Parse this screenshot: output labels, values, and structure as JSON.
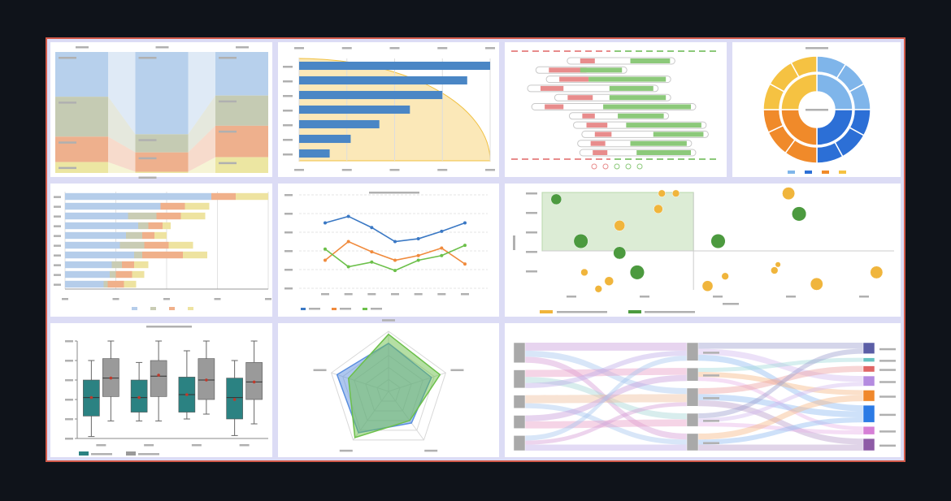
{
  "chart_data": [
    {
      "type": "stacked-column",
      "ylim": [
        0,
        100
      ],
      "series": [
        {
          "color": "#b7d0ec",
          "values": [
            37,
            68,
            36
          ]
        },
        {
          "color": "#c5cbb3",
          "values": [
            33,
            15,
            25
          ]
        },
        {
          "color": "#eeb08d",
          "values": [
            21,
            16,
            26
          ]
        },
        {
          "color": "#ece6a2",
          "values": [
            9,
            1,
            13
          ]
        }
      ]
    },
    {
      "type": "bar",
      "values": [
        100,
        88,
        75,
        58,
        42,
        27,
        16
      ],
      "color": "#4a86c5",
      "area_color": "#fbe8b8",
      "xlim": [
        0,
        100
      ],
      "xticks": [
        0,
        25,
        50,
        75,
        100
      ],
      "grid": true
    },
    {
      "type": "gantt",
      "xlim": [
        0,
        100
      ],
      "series": [
        {
          "color": "#e88c8c",
          "values": [
            [
              33,
              40
            ],
            [
              18,
              36
            ],
            [
              23,
              37
            ],
            [
              14,
              25
            ],
            [
              27,
              39
            ],
            [
              16,
              25
            ],
            [
              34,
              40
            ],
            [
              36,
              46
            ],
            [
              40,
              48
            ],
            [
              38,
              45
            ],
            [
              39,
              46
            ]
          ]
        },
        {
          "color": "#8cc97a",
          "values": [
            [
              57,
              76
            ],
            [
              33,
              53
            ],
            [
              37,
              74
            ],
            [
              47,
              68
            ],
            [
              47,
              74
            ],
            [
              44,
              86
            ],
            [
              51,
              73
            ],
            [
              55,
              91
            ],
            [
              68,
              92
            ],
            [
              57,
              84
            ],
            [
              60,
              86
            ]
          ]
        }
      ]
    },
    {
      "type": "sunburst",
      "values": [
        25,
        25,
        25,
        25
      ],
      "colors": [
        "#7fb5ea",
        "#2c6fd6",
        "#f08a2a",
        "#f5c242"
      ],
      "children": [
        [
          9,
          8,
          8
        ],
        [
          8,
          9,
          8
        ],
        [
          10,
          8,
          7
        ],
        [
          8,
          9,
          8
        ]
      ]
    },
    {
      "type": "stacked-bar",
      "xlim": [
        0,
        100
      ],
      "xticks": [
        0,
        25,
        50,
        75,
        100
      ],
      "grid": true,
      "series": [
        {
          "color": "#b5cdea",
          "values": [
            72,
            47,
            31,
            36,
            30,
            27,
            34,
            23,
            22,
            19
          ]
        },
        {
          "color": "#c9ccb4",
          "values": [
            0,
            0,
            14,
            5,
            8,
            12,
            4,
            5,
            3,
            2
          ]
        },
        {
          "color": "#f0b08a",
          "values": [
            12,
            12,
            12,
            7,
            6,
            12,
            20,
            6,
            8,
            8
          ]
        },
        {
          "color": "#eee3a0",
          "values": [
            16,
            12,
            12,
            4,
            6,
            12,
            12,
            7,
            6,
            6
          ]
        }
      ]
    },
    {
      "type": "line",
      "ylim": [
        0,
        100
      ],
      "yticks": [
        0,
        20,
        40,
        60,
        80,
        100
      ],
      "grid": true,
      "series": [
        {
          "color": "#3a78c4",
          "values": [
            70,
            77,
            65,
            50,
            53,
            61,
            70
          ]
        },
        {
          "color": "#f08a3c",
          "values": [
            30,
            50,
            39,
            30,
            35,
            43,
            26
          ]
        },
        {
          "color": "#6cc04a",
          "values": [
            42,
            23,
            28,
            19,
            30,
            35,
            46
          ]
        }
      ]
    },
    {
      "type": "bubble",
      "xlim": [
        0,
        100
      ],
      "ylim": [
        0,
        100
      ],
      "quadrant_split": [
        43,
        40
      ],
      "series": [
        {
          "color": "#4c9a3f",
          "x": [
            4,
            11,
            22,
            27,
            50,
            73
          ],
          "y": [
            93,
            50,
            38,
            18,
            50,
            78
          ],
          "size": [
            6,
            8,
            7,
            8,
            8,
            8
          ]
        },
        {
          "color": "#f0b53c",
          "x": [
            22,
            33,
            34,
            38,
            12,
            16,
            19,
            52,
            47,
            66,
            67,
            70,
            78,
            95
          ],
          "y": [
            66,
            83,
            99,
            99,
            18,
            1,
            9,
            14,
            4,
            20,
            26,
            99,
            6,
            18
          ],
          "size": [
            6,
            5,
            4,
            4,
            4,
            4,
            5,
            4,
            6,
            4,
            3,
            7,
            7,
            7
          ]
        }
      ]
    },
    {
      "type": "box",
      "ylim": [
        0,
        100
      ],
      "yticks": [
        0,
        20,
        40,
        60,
        80,
        100
      ],
      "series": [
        {
          "color": "#2b8282",
          "boxes": [
            [
              2,
              23,
              42,
              60,
              80
            ],
            [
              18,
              27,
              42,
              60,
              78
            ],
            [
              20,
              27,
              45,
              63,
              90
            ],
            [
              3,
              20,
              42,
              62,
              80
            ]
          ],
          "means": [
            42,
            42,
            45,
            40
          ]
        },
        {
          "color": "#9a9a9a",
          "boxes": [
            [
              18,
              43,
              62,
              82,
              100
            ],
            [
              18,
              43,
              64,
              80,
              100
            ],
            [
              25,
              40,
              60,
              82,
              100
            ],
            [
              15,
              40,
              58,
              78,
              100
            ]
          ],
          "means": [
            62,
            65,
            60,
            58
          ]
        }
      ]
    },
    {
      "type": "radar",
      "rlim": [
        0,
        100
      ],
      "rticks": [
        20,
        40,
        60,
        80,
        100
      ],
      "series": [
        {
          "color": "#5b8fdf",
          "values": [
            80,
            75,
            65,
            85,
            90
          ]
        },
        {
          "color": "#6cc04a",
          "values": [
            95,
            90,
            60,
            95,
            70
          ]
        }
      ]
    },
    {
      "type": "sankey",
      "nodes": [
        {
          "column": 0,
          "color": "#a9a9a9"
        },
        {
          "column": 0,
          "color": "#a9a9a9"
        },
        {
          "column": 0,
          "color": "#a9a9a9"
        },
        {
          "column": 0,
          "color": "#a9a9a9"
        },
        {
          "column": 0,
          "color": "#a9a9a9"
        },
        {
          "column": 1,
          "color": "#a9a9a9"
        },
        {
          "column": 1,
          "color": "#a9a9a9"
        },
        {
          "column": 1,
          "color": "#a9a9a9"
        },
        {
          "column": 1,
          "color": "#a9a9a9"
        },
        {
          "column": 1,
          "color": "#a9a9a9"
        },
        {
          "column": 2,
          "color": "#5b5ea6"
        },
        {
          "column": 2,
          "color": "#66c2c2"
        },
        {
          "column": 2,
          "color": "#e06666"
        },
        {
          "column": 2,
          "color": "#b48be0"
        },
        {
          "column": 2,
          "color": "#f0882c"
        },
        {
          "column": 2,
          "color": "#2c7be5"
        },
        {
          "column": 2,
          "color": "#d67fd6"
        },
        {
          "column": 2,
          "color": "#8e5ba6"
        }
      ],
      "links": [
        {
          "source": 0,
          "target": 5,
          "value": 8,
          "color": "#c9a0dc"
        },
        {
          "source": 0,
          "target": 7,
          "value": 6,
          "color": "#a8c8f0"
        },
        {
          "source": 0,
          "target": 9,
          "value": 6,
          "color": "#d8a0d8"
        },
        {
          "source": 1,
          "target": 6,
          "value": 7,
          "color": "#e8a0c8"
        },
        {
          "source": 1,
          "target": 8,
          "value": 6,
          "color": "#a8d8d8"
        },
        {
          "source": 1,
          "target": 5,
          "value": 5,
          "color": "#c0b0e8"
        },
        {
          "source": 2,
          "target": 7,
          "value": 8,
          "color": "#f0c0a0"
        },
        {
          "source": 2,
          "target": 9,
          "value": 5,
          "color": "#a8c8f0"
        },
        {
          "source": 3,
          "target": 6,
          "value": 6,
          "color": "#c9a0dc"
        },
        {
          "source": 3,
          "target": 8,
          "value": 7,
          "color": "#e8a0c8"
        },
        {
          "source": 4,
          "target": 5,
          "value": 5,
          "color": "#a8c8f0"
        },
        {
          "source": 4,
          "target": 7,
          "value": 4,
          "color": "#d8a0d8"
        },
        {
          "source": 4,
          "target": 9,
          "value": 6,
          "color": "#c0b0e8"
        },
        {
          "source": 5,
          "target": 10,
          "value": 6,
          "color": "#9fa1d0"
        },
        {
          "source": 5,
          "target": 13,
          "value": 6,
          "color": "#d5bdf0"
        },
        {
          "source": 5,
          "target": 15,
          "value": 6,
          "color": "#93bdf2"
        },
        {
          "source": 6,
          "target": 11,
          "value": 4,
          "color": "#a3dcdc"
        },
        {
          "source": 6,
          "target": 14,
          "value": 5,
          "color": "#f6bb8a"
        },
        {
          "source": 6,
          "target": 16,
          "value": 4,
          "color": "#e8b5e8"
        },
        {
          "source": 7,
          "target": 12,
          "value": 6,
          "color": "#eea3a3"
        },
        {
          "source": 7,
          "target": 15,
          "value": 6,
          "color": "#93bdf2"
        },
        {
          "source": 7,
          "target": 17,
          "value": 6,
          "color": "#bb9fcc"
        },
        {
          "source": 8,
          "target": 10,
          "value": 5,
          "color": "#9fa1d0"
        },
        {
          "source": 8,
          "target": 13,
          "value": 4,
          "color": "#d5bdf0"
        },
        {
          "source": 8,
          "target": 16,
          "value": 4,
          "color": "#e8b5e8"
        },
        {
          "source": 9,
          "target": 14,
          "value": 6,
          "color": "#f6bb8a"
        },
        {
          "source": 9,
          "target": 15,
          "value": 5,
          "color": "#93bdf2"
        },
        {
          "source": 9,
          "target": 17,
          "value": 6,
          "color": "#bb9fcc"
        }
      ]
    }
  ]
}
